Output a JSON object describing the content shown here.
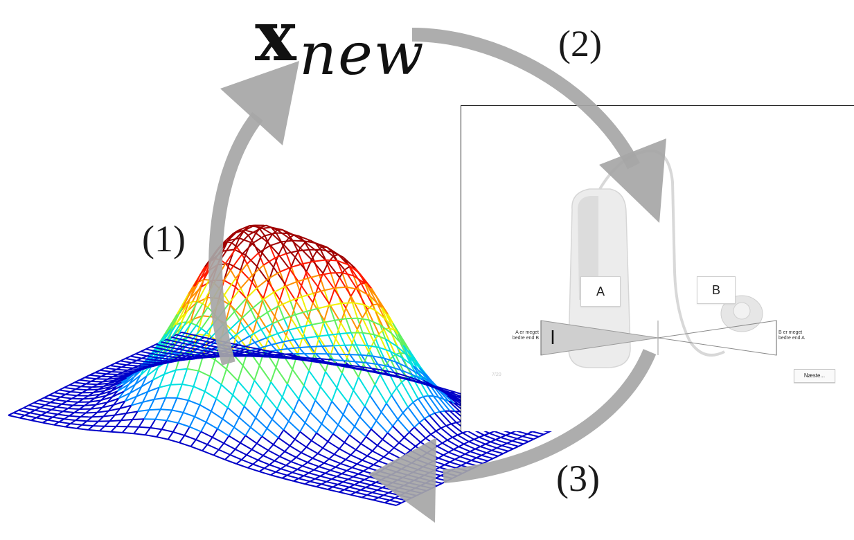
{
  "diagram": {
    "symbol": {
      "main": "x",
      "subscript": "new"
    },
    "steps": [
      {
        "label": "(1)"
      },
      {
        "label": "(2)"
      },
      {
        "label": "(3)"
      }
    ],
    "arrow_color": "#a6a6a6",
    "surface_colormap": [
      "#0000c8",
      "#0088ff",
      "#00e0e0",
      "#60f060",
      "#f0f000",
      "#ff9000",
      "#ff1a00",
      "#a00000"
    ],
    "screen": {
      "option_a": "A",
      "option_b": "B",
      "left_label": "A er meget bedre end B",
      "right_label": "B er meget bedre end A",
      "next_button": "Næste...",
      "faint_text": "7/20"
    }
  }
}
